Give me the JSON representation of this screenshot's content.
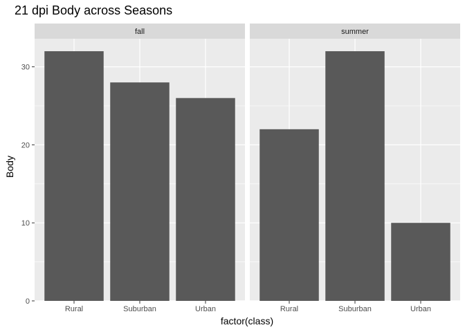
{
  "chart_data": {
    "type": "bar",
    "title": "21 dpi Body across Seasons",
    "xlabel": "factor(class)",
    "ylabel": "Body",
    "ylim": [
      0,
      33.6
    ],
    "yticks": [
      "0",
      "10",
      "20",
      "30"
    ],
    "facets": [
      {
        "name": "fall",
        "categories": [
          "Rural",
          "Suburban",
          "Urban"
        ],
        "values": [
          32,
          28,
          26
        ]
      },
      {
        "name": "summer",
        "categories": [
          "Rural",
          "Suburban",
          "Urban"
        ],
        "values": [
          22,
          32,
          10
        ]
      }
    ],
    "colors": {
      "bar": "#595959",
      "panel": "#ebebeb",
      "strip": "#d9d9d9",
      "grid": "#ffffff"
    },
    "grid": true
  }
}
